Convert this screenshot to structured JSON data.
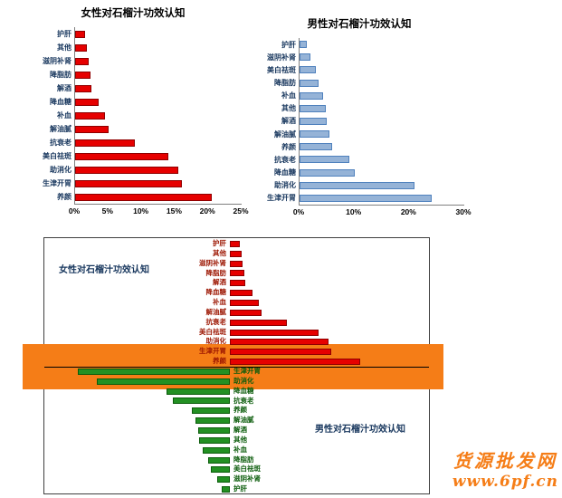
{
  "watermark": {
    "line1": "货源批发网",
    "line2": "www.6pf.cn"
  },
  "colors": {
    "female_bar": "#e60000",
    "male_bar": "#95b3d7",
    "male_bar_border": "#4f81bd",
    "tornado_red": "#e60000",
    "tornado_green": "#239023",
    "highlight_band": "#f57d17"
  },
  "chart_data": [
    {
      "type": "bar",
      "orientation": "horizontal",
      "title": "女性对石榴汁功效认知",
      "categories": [
        "护肝",
        "其他",
        "滋阴补肾",
        "降脂肪",
        "解酒",
        "降血糖",
        "补血",
        "解油腻",
        "抗衰老",
        "美白祛斑",
        "助消化",
        "生津开胃",
        "养颜"
      ],
      "values": [
        1.5,
        1.8,
        2.0,
        2.3,
        2.4,
        3.6,
        4.5,
        5.0,
        9.0,
        14.0,
        15.5,
        16.0,
        20.5
      ],
      "xlim": [
        0,
        25
      ],
      "ticks": [
        "0%",
        "5%",
        "10%",
        "15%",
        "20%",
        "25%"
      ],
      "bar_color": "#e60000",
      "bar_border": "#8f0000",
      "grid": false,
      "legend": false
    },
    {
      "type": "bar",
      "orientation": "horizontal",
      "title": "男性对石榴汁功效认知",
      "categories": [
        "护肝",
        "滋阴补肾",
        "美白祛斑",
        "降脂肪",
        "补血",
        "其他",
        "解酒",
        "解油腻",
        "养颜",
        "抗衰老",
        "降血糖",
        "助消化",
        "生津开胃"
      ],
      "values": [
        1.3,
        2.0,
        3.0,
        3.5,
        4.3,
        4.8,
        5.0,
        5.5,
        6.0,
        9.0,
        10.0,
        21.0,
        24.0
      ],
      "xlim": [
        0,
        30
      ],
      "ticks": [
        "0%",
        "10%",
        "20%",
        "30%"
      ],
      "bar_color": "#95b3d7",
      "bar_border": "#4f81bd",
      "grid": false,
      "legend": false
    },
    {
      "type": "tornado",
      "left_title": "女性对石榴汁功效认知",
      "right_title": "男性对石榴汁功效认知",
      "xlim": [
        0,
        25
      ],
      "rows": [
        {
          "label": "护肝",
          "side": "right",
          "value": 1.5,
          "highlight": false
        },
        {
          "label": "其他",
          "side": "right",
          "value": 1.8,
          "highlight": false
        },
        {
          "label": "滋阴补肾",
          "side": "right",
          "value": 2.0,
          "highlight": false
        },
        {
          "label": "降脂肪",
          "side": "right",
          "value": 2.3,
          "highlight": false
        },
        {
          "label": "解酒",
          "side": "right",
          "value": 2.4,
          "highlight": false
        },
        {
          "label": "降血糖",
          "side": "right",
          "value": 3.6,
          "highlight": false
        },
        {
          "label": "补血",
          "side": "right",
          "value": 4.5,
          "highlight": false
        },
        {
          "label": "解油腻",
          "side": "right",
          "value": 5.0,
          "highlight": false
        },
        {
          "label": "抗衰老",
          "side": "right",
          "value": 9.0,
          "highlight": false
        },
        {
          "label": "美白祛斑",
          "side": "right",
          "value": 14.0,
          "highlight": false
        },
        {
          "label": "助消化",
          "side": "right",
          "value": 15.5,
          "highlight": false
        },
        {
          "label": "生津开胃",
          "side": "right",
          "value": 16.0,
          "highlight": true
        },
        {
          "label": "养颜",
          "side": "right",
          "value": 20.5,
          "highlight": true
        },
        {
          "label": "生津开胃",
          "side": "left",
          "value": 24.0,
          "highlight": true
        },
        {
          "label": "助消化",
          "side": "left",
          "value": 21.0,
          "highlight": true
        },
        {
          "label": "降血糖",
          "side": "left",
          "value": 10.0,
          "highlight": false
        },
        {
          "label": "抗衰老",
          "side": "left",
          "value": 9.0,
          "highlight": false
        },
        {
          "label": "养颜",
          "side": "left",
          "value": 6.0,
          "highlight": false
        },
        {
          "label": "解油腻",
          "side": "left",
          "value": 5.5,
          "highlight": false
        },
        {
          "label": "解酒",
          "side": "left",
          "value": 5.0,
          "highlight": false
        },
        {
          "label": "其他",
          "side": "left",
          "value": 4.8,
          "highlight": false
        },
        {
          "label": "补血",
          "side": "left",
          "value": 4.3,
          "highlight": false
        },
        {
          "label": "降脂肪",
          "side": "left",
          "value": 3.5,
          "highlight": false
        },
        {
          "label": "美白祛斑",
          "side": "left",
          "value": 3.0,
          "highlight": false
        },
        {
          "label": "滋阴补肾",
          "side": "left",
          "value": 2.0,
          "highlight": false
        },
        {
          "label": "护肝",
          "side": "left",
          "value": 1.3,
          "highlight": false
        }
      ]
    }
  ]
}
